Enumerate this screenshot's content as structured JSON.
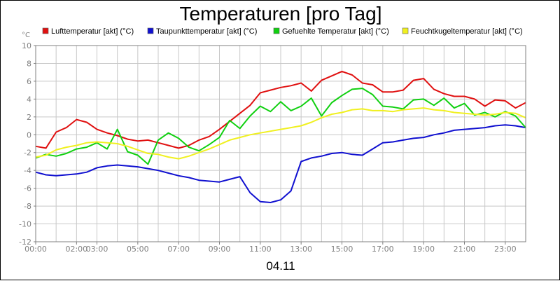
{
  "chart_data": {
    "type": "line",
    "title": "Temperaturen [pro Tag]",
    "xlabel": "04.11",
    "ylabel": "°C",
    "ylim": [
      -12,
      10
    ],
    "xlim": [
      0,
      24
    ],
    "yticks": [
      10,
      8,
      6,
      4,
      2,
      0,
      -2,
      -4,
      -6,
      -8,
      -10,
      -12
    ],
    "xticks": [
      "00:00",
      "02:00",
      "03:00",
      "05:00",
      "07:00",
      "09:00",
      "11:00",
      "13:00",
      "15:00",
      "17:00",
      "19:00",
      "21:00",
      "23:00"
    ],
    "grid": true,
    "legend_position": "top",
    "series": [
      {
        "name": "Lufttemperatur [akt] (°C)",
        "color": "#e01010",
        "x": [
          0,
          0.5,
          1,
          1.5,
          2,
          2.5,
          3,
          3.5,
          4,
          4.5,
          5,
          5.5,
          6,
          6.5,
          7,
          7.5,
          8,
          8.5,
          9,
          9.5,
          10,
          10.5,
          11,
          11.5,
          12,
          12.5,
          13,
          13.5,
          14,
          14.5,
          15,
          15.5,
          16,
          16.5,
          17,
          17.5,
          18,
          18.5,
          19,
          19.5,
          20,
          20.5,
          21,
          21.5,
          22,
          22.5,
          23,
          23.5,
          24
        ],
        "y": [
          -1.3,
          -1.5,
          0.3,
          0.8,
          1.7,
          1.4,
          0.6,
          0.2,
          -0.1,
          -0.5,
          -0.7,
          -0.6,
          -0.9,
          -1.2,
          -1.5,
          -1.2,
          -0.6,
          -0.2,
          0.6,
          1.5,
          2.4,
          3.3,
          4.7,
          5.0,
          5.3,
          5.5,
          5.8,
          4.9,
          6.1,
          6.6,
          7.1,
          6.7,
          5.8,
          5.6,
          4.8,
          4.8,
          5.0,
          6.1,
          6.3,
          5.1,
          4.6,
          4.3,
          4.3,
          4.0,
          3.2,
          3.9,
          3.8,
          3.0,
          3.6
        ]
      },
      {
        "name": "Taupunkttemperatur [akt] (°C)",
        "color": "#1010d0",
        "x": [
          0,
          0.5,
          1,
          1.5,
          2,
          2.5,
          3,
          3.5,
          4,
          4.5,
          5,
          5.5,
          6,
          6.5,
          7,
          7.5,
          8,
          8.5,
          9,
          9.5,
          10,
          10.5,
          11,
          11.5,
          12,
          12.5,
          13,
          13.5,
          14,
          14.5,
          15,
          15.5,
          16,
          16.5,
          17,
          17.5,
          18,
          18.5,
          19,
          19.5,
          20,
          20.5,
          21,
          21.5,
          22,
          22.5,
          23,
          23.5,
          24
        ],
        "y": [
          -4.2,
          -4.5,
          -4.6,
          -4.5,
          -4.4,
          -4.2,
          -3.7,
          -3.5,
          -3.4,
          -3.5,
          -3.6,
          -3.8,
          -4.0,
          -4.3,
          -4.6,
          -4.8,
          -5.1,
          -5.2,
          -5.3,
          -5.0,
          -4.7,
          -6.5,
          -7.5,
          -7.6,
          -7.3,
          -6.3,
          -3.0,
          -2.6,
          -2.4,
          -2.1,
          -2.0,
          -2.2,
          -2.3,
          -1.6,
          -0.9,
          -0.8,
          -0.6,
          -0.4,
          -0.3,
          0.0,
          0.2,
          0.5,
          0.6,
          0.7,
          0.8,
          1.0,
          1.1,
          1.0,
          0.8
        ]
      },
      {
        "name": "Gefuehlte Temperatur [akt] (°C)",
        "color": "#10d010",
        "x": [
          0,
          0.5,
          1,
          1.5,
          2,
          2.5,
          3,
          3.5,
          4,
          4.5,
          5,
          5.5,
          6,
          6.5,
          7,
          7.5,
          8,
          8.5,
          9,
          9.5,
          10,
          10.5,
          11,
          11.5,
          12,
          12.5,
          13,
          13.5,
          14,
          14.5,
          15,
          15.5,
          16,
          16.5,
          17,
          17.5,
          18,
          18.5,
          19,
          19.5,
          20,
          20.5,
          21,
          21.5,
          22,
          22.5,
          23,
          23.5,
          24
        ],
        "y": [
          -2.6,
          -2.2,
          -2.4,
          -2.1,
          -1.6,
          -1.4,
          -0.9,
          -1.6,
          0.6,
          -1.9,
          -2.3,
          -3.3,
          -0.6,
          0.2,
          -0.4,
          -1.4,
          -1.8,
          -1.1,
          -0.3,
          1.6,
          0.7,
          2.1,
          3.2,
          2.6,
          3.7,
          2.7,
          3.2,
          4.1,
          2.1,
          3.6,
          4.4,
          5.1,
          5.2,
          4.5,
          3.2,
          3.1,
          2.9,
          3.9,
          4.0,
          3.3,
          4.1,
          3.0,
          3.5,
          2.2,
          2.5,
          2.0,
          2.6,
          2.1,
          0.8
        ]
      },
      {
        "name": "Feuchtkugeltemperatur [akt] (°C)",
        "color": "#f0f020",
        "x": [
          0,
          0.5,
          1,
          1.5,
          2,
          2.5,
          3,
          3.5,
          4,
          4.5,
          5,
          5.5,
          6,
          6.5,
          7,
          7.5,
          8,
          8.5,
          9,
          9.5,
          10,
          10.5,
          11,
          11.5,
          12,
          12.5,
          13,
          13.5,
          14,
          14.5,
          15,
          15.5,
          16,
          16.5,
          17,
          17.5,
          18,
          18.5,
          19,
          19.5,
          20,
          20.5,
          21,
          21.5,
          22,
          22.5,
          23,
          23.5,
          24
        ],
        "y": [
          -2.5,
          -2.3,
          -1.7,
          -1.4,
          -1.2,
          -0.9,
          -0.8,
          -0.9,
          -1.0,
          -1.3,
          -1.7,
          -2.1,
          -2.2,
          -2.5,
          -2.7,
          -2.4,
          -2.0,
          -1.6,
          -1.1,
          -0.6,
          -0.3,
          0.0,
          0.2,
          0.4,
          0.6,
          0.8,
          1.0,
          1.4,
          1.9,
          2.3,
          2.5,
          2.8,
          2.9,
          2.7,
          2.7,
          2.6,
          2.8,
          2.9,
          3.0,
          2.8,
          2.7,
          2.5,
          2.4,
          2.3,
          2.2,
          2.3,
          2.5,
          2.4,
          1.9
        ]
      }
    ]
  }
}
